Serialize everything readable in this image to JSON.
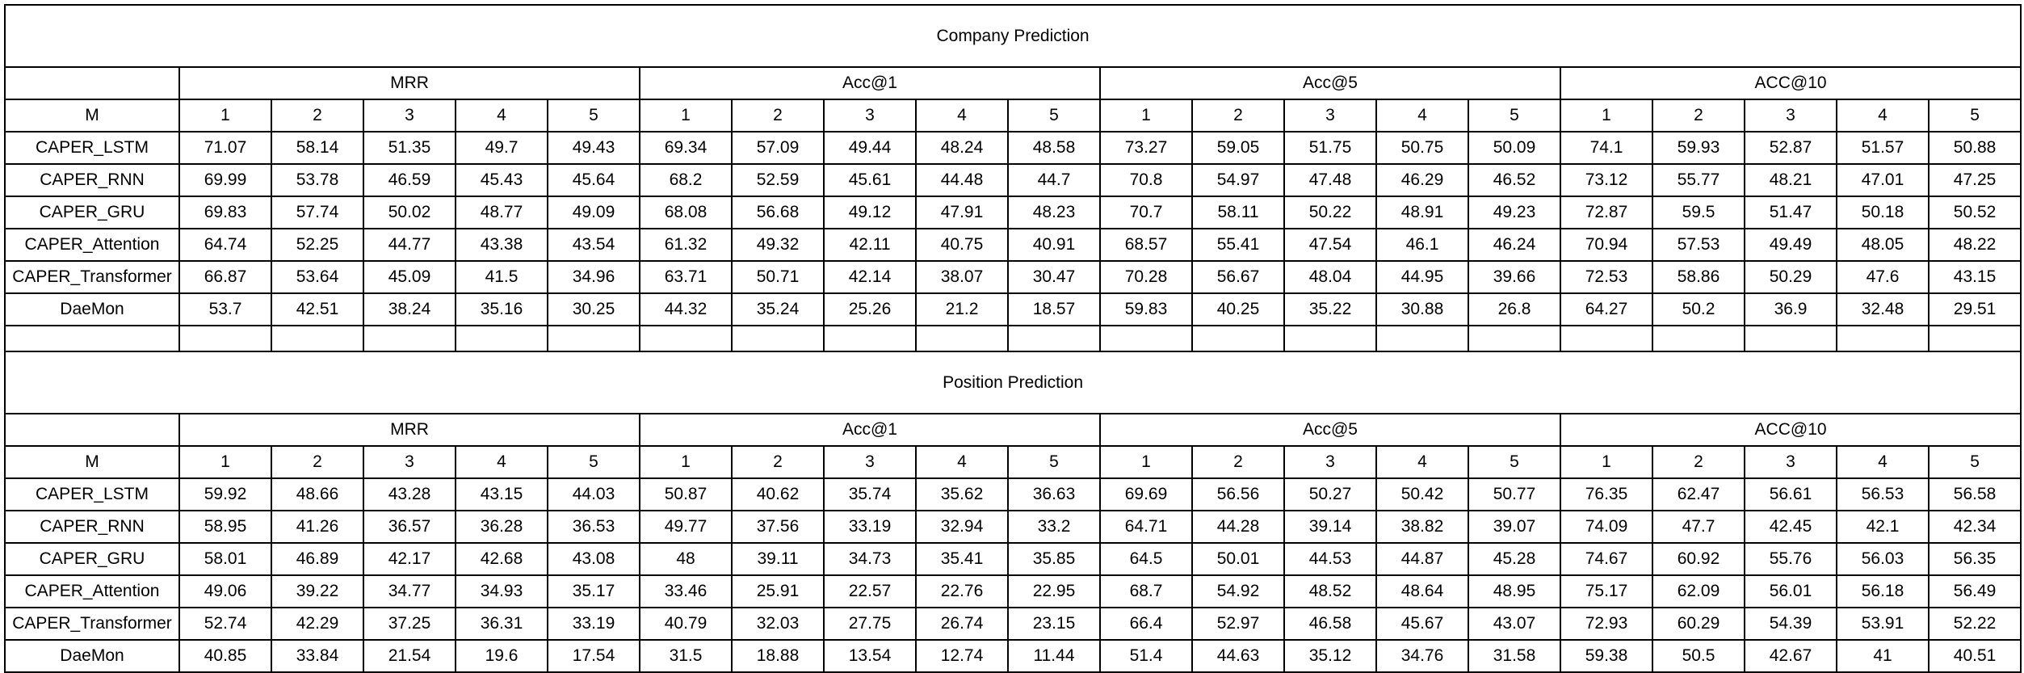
{
  "sections": [
    {
      "title": "Company Prediction",
      "groups": [
        "MRR",
        "Acc@1",
        "Acc@5",
        "ACC@10"
      ],
      "sub_header": [
        "M",
        "1",
        "2",
        "3",
        "4",
        "5",
        "1",
        "2",
        "3",
        "4",
        "5",
        "1",
        "2",
        "3",
        "4",
        "5",
        "1",
        "2",
        "3",
        "4",
        "5"
      ],
      "rows": [
        [
          "CAPER_LSTM",
          "71.07",
          "58.14",
          "51.35",
          "49.7",
          "49.43",
          "69.34",
          "57.09",
          "49.44",
          "48.24",
          "48.58",
          "73.27",
          "59.05",
          "51.75",
          "50.75",
          "50.09",
          "74.1",
          "59.93",
          "52.87",
          "51.57",
          "50.88"
        ],
        [
          "CAPER_RNN",
          "69.99",
          "53.78",
          "46.59",
          "45.43",
          "45.64",
          "68.2",
          "52.59",
          "45.61",
          "44.48",
          "44.7",
          "70.8",
          "54.97",
          "47.48",
          "46.29",
          "46.52",
          "73.12",
          "55.77",
          "48.21",
          "47.01",
          "47.25"
        ],
        [
          "CAPER_GRU",
          "69.83",
          "57.74",
          "50.02",
          "48.77",
          "49.09",
          "68.08",
          "56.68",
          "49.12",
          "47.91",
          "48.23",
          "70.7",
          "58.11",
          "50.22",
          "48.91",
          "49.23",
          "72.87",
          "59.5",
          "51.47",
          "50.18",
          "50.52"
        ],
        [
          "CAPER_Attention",
          "64.74",
          "52.25",
          "44.77",
          "43.38",
          "43.54",
          "61.32",
          "49.32",
          "42.11",
          "40.75",
          "40.91",
          "68.57",
          "55.41",
          "47.54",
          "46.1",
          "46.24",
          "70.94",
          "57.53",
          "49.49",
          "48.05",
          "48.22"
        ],
        [
          "CAPER_Transformer",
          "66.87",
          "53.64",
          "45.09",
          "41.5",
          "34.96",
          "63.71",
          "50.71",
          "42.14",
          "38.07",
          "30.47",
          "70.28",
          "56.67",
          "48.04",
          "44.95",
          "39.66",
          "72.53",
          "58.86",
          "50.29",
          "47.6",
          "43.15"
        ],
        [
          "DaeMon",
          "53.7",
          "42.51",
          "38.24",
          "35.16",
          "30.25",
          "44.32",
          "35.24",
          "25.26",
          "21.2",
          "18.57",
          "59.83",
          "40.25",
          "35.22",
          "30.88",
          "26.8",
          "64.27",
          "50.2",
          "36.9",
          "32.48",
          "29.51"
        ]
      ]
    },
    {
      "title": "Position Prediction",
      "groups": [
        "MRR",
        "Acc@1",
        "Acc@5",
        "ACC@10"
      ],
      "sub_header": [
        "M",
        "1",
        "2",
        "3",
        "4",
        "5",
        "1",
        "2",
        "3",
        "4",
        "5",
        "1",
        "2",
        "3",
        "4",
        "5",
        "1",
        "2",
        "3",
        "4",
        "5"
      ],
      "rows": [
        [
          "CAPER_LSTM",
          "59.92",
          "48.66",
          "43.28",
          "43.15",
          "44.03",
          "50.87",
          "40.62",
          "35.74",
          "35.62",
          "36.63",
          "69.69",
          "56.56",
          "50.27",
          "50.42",
          "50.77",
          "76.35",
          "62.47",
          "56.61",
          "56.53",
          "56.58"
        ],
        [
          "CAPER_RNN",
          "58.95",
          "41.26",
          "36.57",
          "36.28",
          "36.53",
          "49.77",
          "37.56",
          "33.19",
          "32.94",
          "33.2",
          "64.71",
          "44.28",
          "39.14",
          "38.82",
          "39.07",
          "74.09",
          "47.7",
          "42.45",
          "42.1",
          "42.34"
        ],
        [
          "CAPER_GRU",
          "58.01",
          "46.89",
          "42.17",
          "42.68",
          "43.08",
          "48",
          "39.11",
          "34.73",
          "35.41",
          "35.85",
          "64.5",
          "50.01",
          "44.53",
          "44.87",
          "45.28",
          "74.67",
          "60.92",
          "55.76",
          "56.03",
          "56.35"
        ],
        [
          "CAPER_Attention",
          "49.06",
          "39.22",
          "34.77",
          "34.93",
          "35.17",
          "33.46",
          "25.91",
          "22.57",
          "22.76",
          "22.95",
          "68.7",
          "54.92",
          "48.52",
          "48.64",
          "48.95",
          "75.17",
          "62.09",
          "56.01",
          "56.18",
          "56.49"
        ],
        [
          "CAPER_Transformer",
          "52.74",
          "42.29",
          "37.25",
          "36.31",
          "33.19",
          "40.79",
          "32.03",
          "27.75",
          "26.74",
          "23.15",
          "66.4",
          "52.97",
          "46.58",
          "45.67",
          "43.07",
          "72.93",
          "60.29",
          "54.39",
          "53.91",
          "52.22"
        ],
        [
          "DaeMon",
          "40.85",
          "33.84",
          "21.54",
          "19.6",
          "17.54",
          "31.5",
          "18.88",
          "13.54",
          "12.74",
          "11.44",
          "51.4",
          "44.63",
          "35.12",
          "34.76",
          "31.58",
          "59.38",
          "50.5",
          "42.67",
          "41",
          "40.51"
        ]
      ]
    }
  ]
}
